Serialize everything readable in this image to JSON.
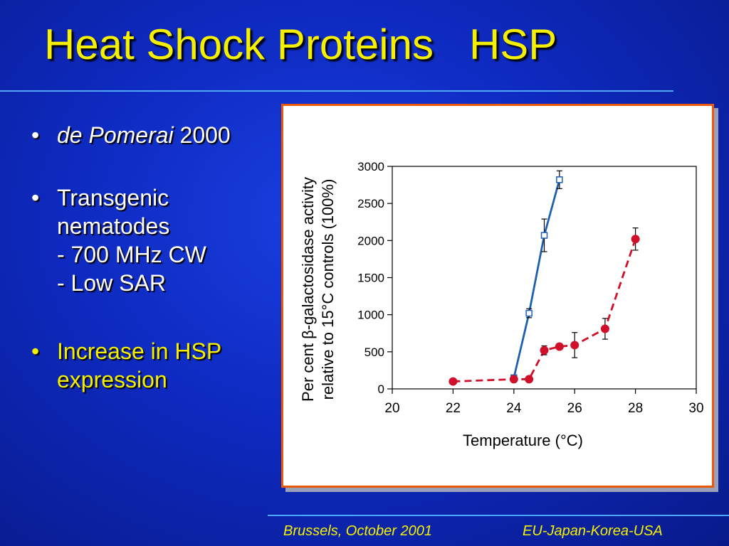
{
  "slide": {
    "title": "Heat Shock Proteins   HSP",
    "bullets": [
      {
        "italic": "de Pomerai",
        "text": " 2000"
      },
      {
        "text": "Transgenic nematodes",
        "subs": [
          "- 700 MHz CW",
          "- Low SAR"
        ]
      },
      {
        "text": "Increase in HSP expression"
      }
    ],
    "bullet_char": "•",
    "footer_left": "Brussels, October 2001",
    "footer_right": "EU-Japan-Korea-USA",
    "colors": {
      "title": "#f5f000",
      "accent_line": "#4aa8ff",
      "frame": "#e8590c"
    }
  },
  "chart_data": {
    "type": "line",
    "xlabel": "Temperature (°C)",
    "ylabel_lines": [
      "Per cent β-galactosidase activity",
      "relative to 15°C controls (100%)"
    ],
    "xlim": [
      20,
      30
    ],
    "ylim": [
      0,
      3000
    ],
    "xticks": [
      20,
      22,
      24,
      26,
      28,
      30
    ],
    "yticks": [
      0,
      500,
      1000,
      1500,
      2000,
      2500,
      3000
    ],
    "grid": false,
    "series": [
      {
        "color": "#1f5fb0",
        "style": "solid",
        "marker": "open-square",
        "x": [
          24,
          24.5,
          25,
          25.5
        ],
        "y": [
          150,
          1020,
          2070,
          2820
        ],
        "err": [
          30,
          60,
          220,
          120
        ]
      },
      {
        "color": "#d0102a",
        "style": "dashed",
        "marker": "filled-circle",
        "x": [
          22,
          24,
          24.5,
          25,
          25.5,
          26,
          27,
          28
        ],
        "y": [
          100,
          130,
          130,
          520,
          570,
          590,
          810,
          2020
        ],
        "err": [
          15,
          20,
          20,
          60,
          40,
          170,
          140,
          150
        ]
      }
    ]
  }
}
